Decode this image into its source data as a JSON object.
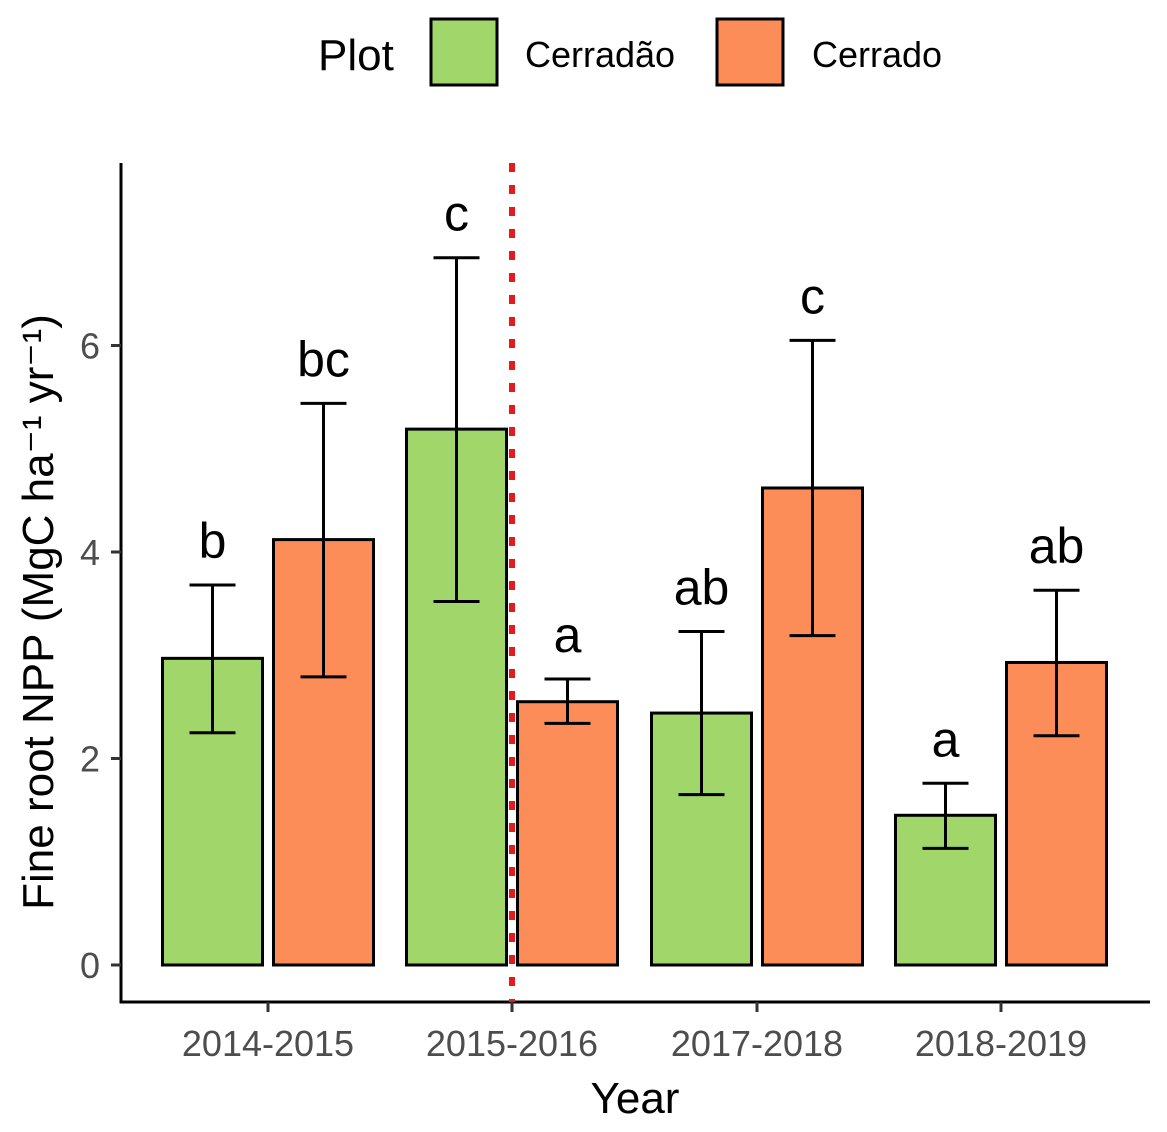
{
  "chart_data": {
    "type": "bar",
    "categories": [
      "2014-2015",
      "2015-2016",
      "2017-2018",
      "2018-2019"
    ],
    "xlabel": "Year",
    "ylabel": "Fine root NPP (MgC ha⁻¹ yr⁻¹)",
    "ylim": [
      -0.35,
      7.8
    ],
    "yticks": [
      0,
      2,
      4,
      6
    ],
    "legend": {
      "title": "Plot",
      "position": "top",
      "items": [
        {
          "name": "Cerradão",
          "color": "#a1d66a"
        },
        {
          "name": "Cerrado",
          "color": "#fc8d59"
        }
      ]
    },
    "series": [
      {
        "name": "Cerradão",
        "color": "#a1d66a",
        "values": [
          2.97,
          5.19,
          2.44,
          1.45
        ],
        "error_low": [
          2.25,
          3.52,
          1.65,
          1.13
        ],
        "error_high": [
          3.68,
          6.85,
          3.23,
          1.76
        ],
        "labels": [
          "b",
          "c",
          "ab",
          "a"
        ]
      },
      {
        "name": "Cerrado",
        "color": "#fc8d59",
        "values": [
          4.12,
          2.55,
          4.62,
          2.93
        ],
        "error_low": [
          2.79,
          2.34,
          3.19,
          2.22
        ],
        "error_high": [
          5.44,
          2.77,
          6.05,
          3.63
        ],
        "labels": [
          "bc",
          "a",
          "c",
          "ab"
        ]
      }
    ],
    "annotations": [
      {
        "type": "vertical-dotted-line",
        "position": "between 2015-2016 bars",
        "color": "#e41a1c"
      }
    ],
    "grid": false
  }
}
